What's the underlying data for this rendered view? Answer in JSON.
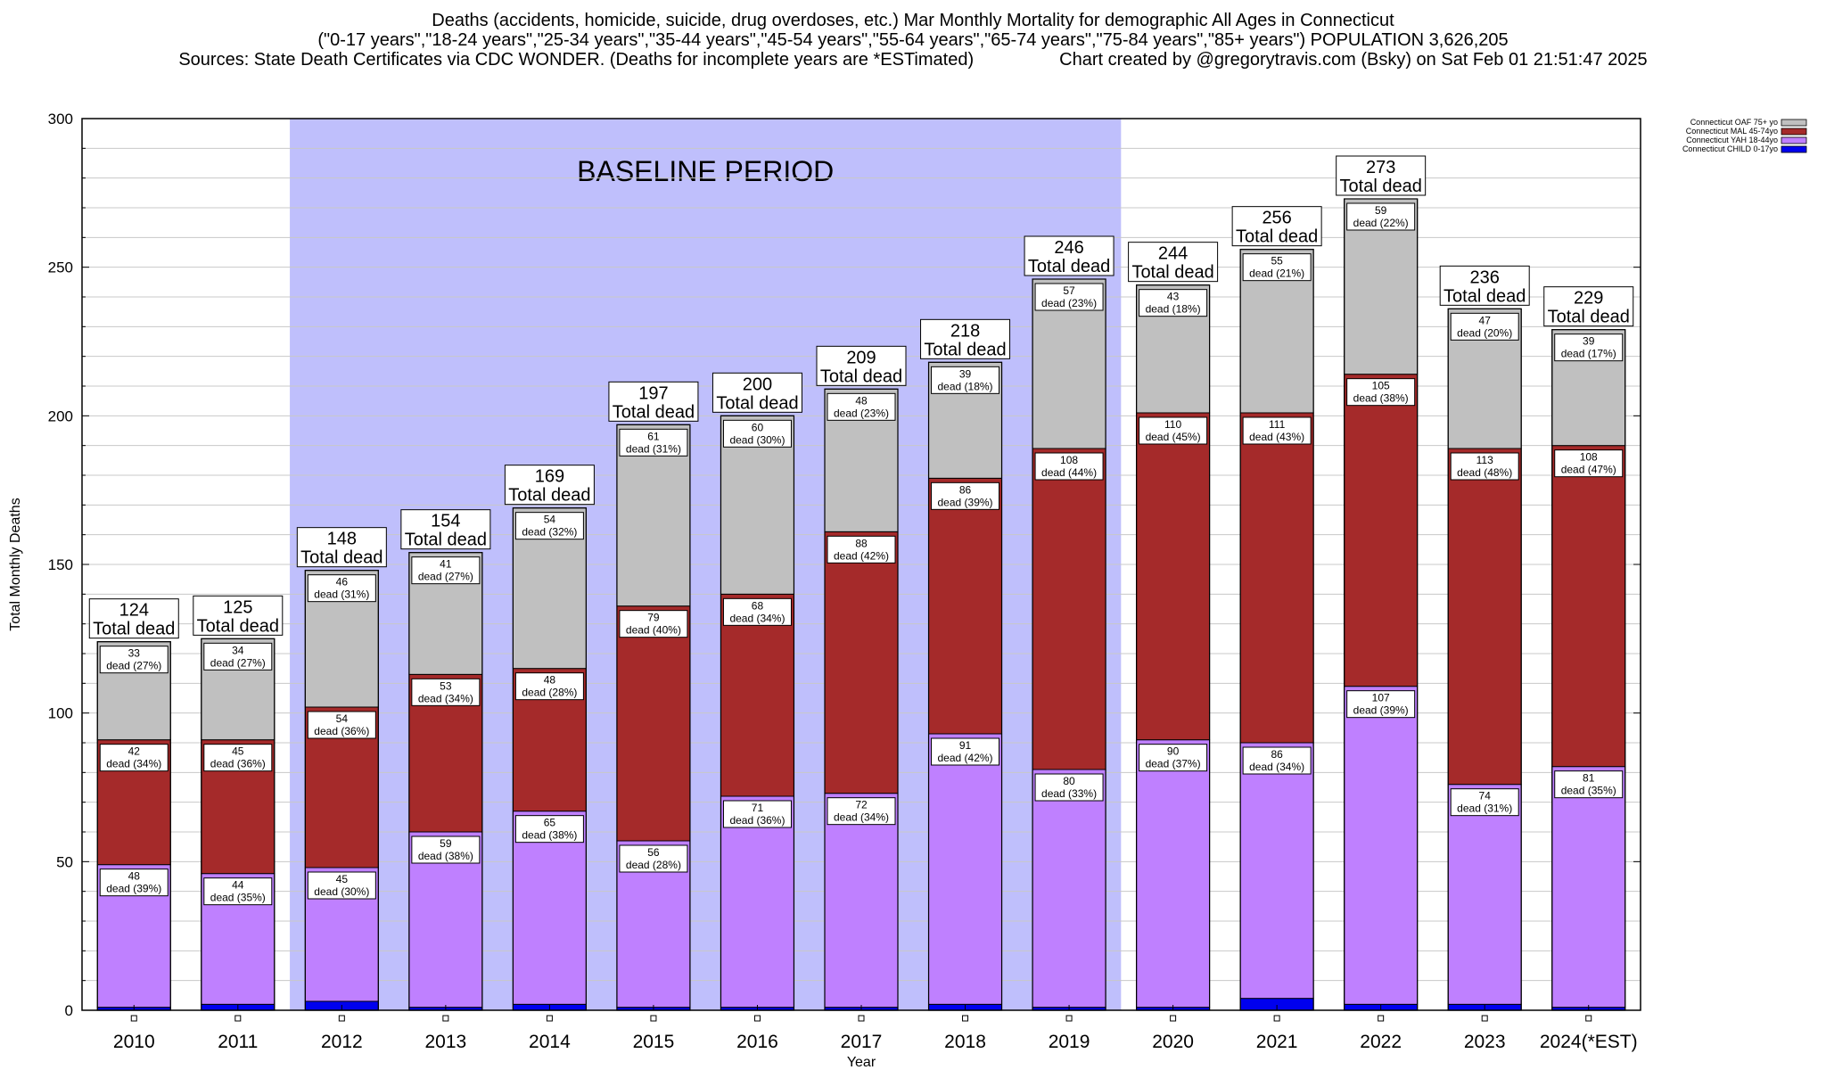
{
  "header": {
    "title": "Deaths (accidents, homicide, suicide, drug overdoses, etc.) Mar Monthly Mortality for demographic All Ages in Connecticut",
    "subtitle": "(\"0-17 years\",\"18-24 years\",\"25-34 years\",\"35-44 years\",\"45-54 years\",\"55-64 years\",\"65-74 years\",\"75-84 years\",\"85+ years\") POPULATION 3,626,205",
    "sources": "Sources: State Death Certificates via CDC WONDER. (Deaths for incomplete years are *ESTimated)",
    "credit": "Chart created by @gregorytravis.com (Bsky) on Sat Feb 01 21:51:47 2025"
  },
  "chart_data": {
    "type": "bar",
    "stacked": true,
    "xlabel": "Year",
    "ylabel": "Total Monthly Deaths",
    "ylim": [
      0,
      300
    ],
    "yticks": [
      0,
      50,
      100,
      150,
      200,
      250,
      300
    ],
    "categories": [
      "2010",
      "2011",
      "2012",
      "2013",
      "2014",
      "2015",
      "2016",
      "2017",
      "2018",
      "2019",
      "2020",
      "2021",
      "2022",
      "2023",
      "2024(*EST)"
    ],
    "baseline": {
      "label": "BASELINE PERIOD",
      "from": "2012",
      "to": "2019",
      "color": "#bfbffc"
    },
    "totals": [
      124,
      125,
      148,
      154,
      169,
      197,
      200,
      209,
      218,
      246,
      244,
      256,
      273,
      236,
      229
    ],
    "total_suffix": "Total dead",
    "dead_word": "dead",
    "series": [
      {
        "name": "Connecticut CHILD 0-17yo",
        "color": "#0000ee",
        "values": [
          1,
          2,
          3,
          1,
          2,
          1,
          1,
          1,
          2,
          1,
          1,
          4,
          2,
          2,
          1
        ],
        "labels": []
      },
      {
        "name": "Connecticut YAH 18-44yo",
        "color": "#bf80ff",
        "values": [
          48,
          44,
          45,
          59,
          65,
          56,
          71,
          72,
          91,
          80,
          90,
          86,
          107,
          74,
          81
        ],
        "labels": [
          "48",
          "44",
          "45",
          "59",
          "65",
          "56",
          "71",
          "72",
          "91",
          "80",
          "90",
          "86",
          "107",
          "74",
          "81"
        ],
        "pcts": [
          "(39%)",
          "(35%)",
          "(30%)",
          "(38%)",
          "(38%)",
          "(28%)",
          "(36%)",
          "(34%)",
          "(42%)",
          "(33%)",
          "(37%)",
          "(34%)",
          "(39%)",
          "(31%)",
          "(35%)"
        ]
      },
      {
        "name": "Connecticut MAL 45-74yo",
        "color": "#a52a2a",
        "values": [
          42,
          45,
          54,
          53,
          48,
          79,
          68,
          88,
          86,
          108,
          110,
          111,
          105,
          113,
          108
        ],
        "labels": [
          "42",
          "45",
          "54",
          "53",
          "48",
          "79",
          "68",
          "88",
          "86",
          "108",
          "110",
          "111",
          "105",
          "113",
          "108"
        ],
        "pcts": [
          "(34%)",
          "(36%)",
          "(36%)",
          "(34%)",
          "(28%)",
          "(40%)",
          "(34%)",
          "(42%)",
          "(39%)",
          "(44%)",
          "(45%)",
          "(43%)",
          "(38%)",
          "(48%)",
          "(47%)"
        ]
      },
      {
        "name": "Connecticut OAF 75+ yo",
        "color": "#c0c0c0",
        "values": [
          33,
          34,
          46,
          41,
          54,
          61,
          60,
          48,
          39,
          57,
          43,
          55,
          59,
          47,
          39
        ],
        "labels": [
          "33",
          "34",
          "46",
          "41",
          "54",
          "61",
          "60",
          "48",
          "39",
          "57",
          "43",
          "55",
          "59",
          "47",
          "39"
        ],
        "pcts": [
          "(27%)",
          "(27%)",
          "(31%)",
          "(27%)",
          "(32%)",
          "(31%)",
          "(30%)",
          "(23%)",
          "(18%)",
          "(23%)",
          "(18%)",
          "(21%)",
          "(22%)",
          "(20%)",
          "(17%)"
        ]
      }
    ],
    "legend_order": [
      "Connecticut OAF 75+ yo",
      "Connecticut MAL 45-74yo",
      "Connecticut YAH 18-44yo",
      "Connecticut CHILD 0-17yo"
    ],
    "legend_position": "top-right",
    "grid": true
  }
}
